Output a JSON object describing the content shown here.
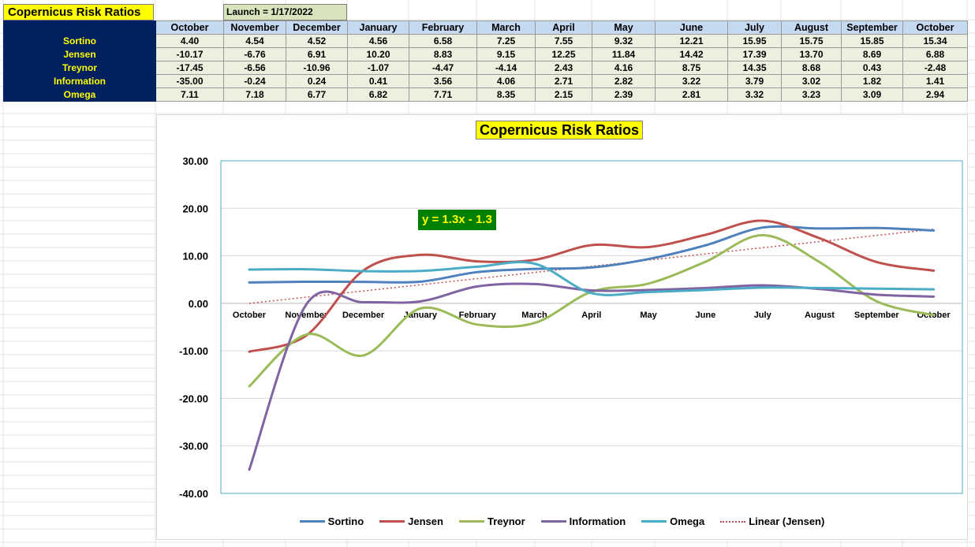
{
  "sheet": {
    "title": "Copernicus Risk Ratios",
    "launch": "Launch = 1/17/2022"
  },
  "table": {
    "months": [
      "October",
      "November",
      "December",
      "January",
      "February",
      "March",
      "April",
      "May",
      "June",
      "July",
      "August",
      "September",
      "October"
    ],
    "rows": [
      {
        "name": "Sortino",
        "values": [
          "4.40",
          "4.54",
          "4.52",
          "4.56",
          "6.58",
          "7.25",
          "7.55",
          "9.32",
          "12.21",
          "15.95",
          "15.75",
          "15.85",
          "15.34"
        ]
      },
      {
        "name": "Jensen",
        "values": [
          "-10.17",
          "-6.76",
          "6.91",
          "10.20",
          "8.83",
          "9.15",
          "12.25",
          "11.84",
          "14.42",
          "17.39",
          "13.70",
          "8.69",
          "6.88"
        ]
      },
      {
        "name": "Treynor",
        "values": [
          "-17.45",
          "-6.56",
          "-10.96",
          "-1.07",
          "-4.47",
          "-4.14",
          "2.43",
          "4.16",
          "8.75",
          "14.35",
          "8.68",
          "0.43",
          "-2.48"
        ]
      },
      {
        "name": "Information",
        "values": [
          "-35.00",
          "-0.24",
          "0.24",
          "0.41",
          "3.56",
          "4.06",
          "2.71",
          "2.82",
          "3.22",
          "3.79",
          "3.02",
          "1.82",
          "1.41"
        ]
      },
      {
        "name": "Omega",
        "values": [
          "7.11",
          "7.18",
          "6.77",
          "6.82",
          "7.71",
          "8.35",
          "2.15",
          "2.39",
          "2.81",
          "3.32",
          "3.23",
          "3.09",
          "2.94"
        ]
      }
    ]
  },
  "chart_data": {
    "type": "line",
    "title": "Copernicus Risk Ratios",
    "categories": [
      "October",
      "November",
      "December",
      "January",
      "February",
      "March",
      "April",
      "May",
      "June",
      "July",
      "August",
      "September",
      "October"
    ],
    "ylim": [
      -40,
      30
    ],
    "yticks": [
      30,
      20,
      10,
      0,
      -10,
      -20,
      -30,
      -40
    ],
    "ytick_labels": [
      "30.00",
      "20.00",
      "10.00",
      "0.00",
      "-10.00",
      "-20.00",
      "-30.00",
      "-40.00"
    ],
    "grid": true,
    "legend_position": "bottom",
    "smooth": true,
    "series": [
      {
        "name": "Sortino",
        "color": "#4f81bd",
        "values": [
          4.4,
          4.54,
          4.52,
          4.56,
          6.58,
          7.25,
          7.55,
          9.32,
          12.21,
          15.95,
          15.75,
          15.85,
          15.34
        ]
      },
      {
        "name": "Jensen",
        "color": "#c0504d",
        "values": [
          -10.17,
          -6.76,
          6.91,
          10.2,
          8.83,
          9.15,
          12.25,
          11.84,
          14.42,
          17.39,
          13.7,
          8.69,
          6.88
        ]
      },
      {
        "name": "Treynor",
        "color": "#9bbb59",
        "values": [
          -17.45,
          -6.56,
          -10.96,
          -1.07,
          -4.47,
          -4.14,
          2.43,
          4.16,
          8.75,
          14.35,
          8.68,
          0.43,
          -2.48
        ]
      },
      {
        "name": "Information",
        "color": "#8064a2",
        "values": [
          -35.0,
          -0.24,
          0.24,
          0.41,
          3.56,
          4.06,
          2.71,
          2.82,
          3.22,
          3.79,
          3.02,
          1.82,
          1.41
        ]
      },
      {
        "name": "Omega",
        "color": "#4bacc6",
        "values": [
          7.11,
          7.18,
          6.77,
          6.82,
          7.71,
          8.35,
          2.15,
          2.39,
          2.81,
          3.32,
          3.23,
          3.09,
          2.94
        ]
      }
    ],
    "trendline": {
      "name": "Linear (Jensen)",
      "of": "Jensen",
      "equation": "y = 1.3x - 1.3",
      "slope": 1.3,
      "intercept": -1.3,
      "color": "#c0504d"
    }
  }
}
